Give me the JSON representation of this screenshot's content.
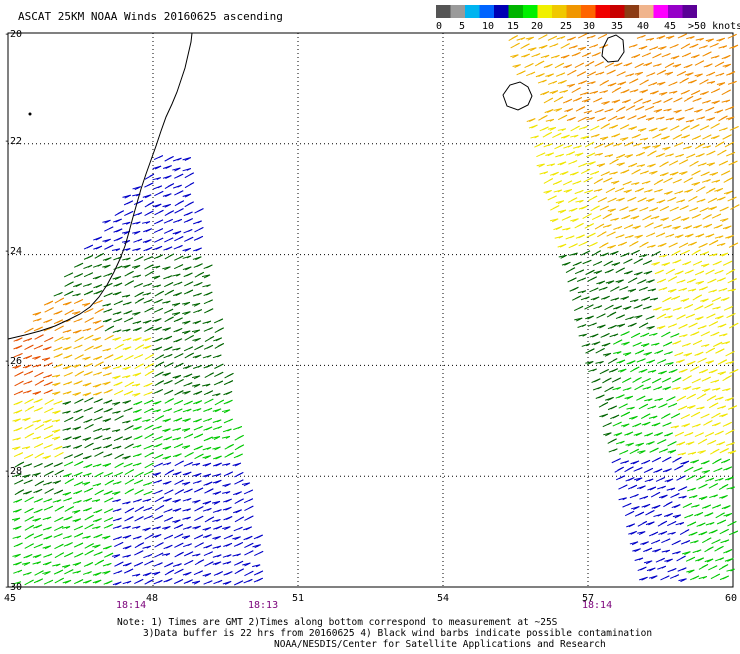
{
  "title": "ASCAT 25KM NOAA Winds 20160625 ascending",
  "legend": {
    "colors": [
      "#555555",
      "#9a9a9a",
      "#00b4f0",
      "#0064ff",
      "#0000b4",
      "#00b400",
      "#00f000",
      "#f0f000",
      "#f0c800",
      "#f09600",
      "#ff6400",
      "#f00000",
      "#c80000",
      "#8c3c14",
      "#f0b48c",
      "#ff00ff",
      "#9600c8",
      "#5a0096"
    ],
    "labels": [
      "0",
      "5",
      "10",
      "15",
      "20",
      "25",
      "30",
      "35",
      "40",
      "45",
      ">50 knots"
    ]
  },
  "axes": {
    "lon_labels": [
      "45",
      "48",
      "51",
      "54",
      "57",
      "60"
    ],
    "lat_labels": [
      "-20",
      "-22",
      "-24",
      "-26",
      "-28",
      "-30"
    ]
  },
  "times": [
    "18:14",
    "18:13",
    "18:14"
  ],
  "notes": [
    "Note: 1) Times are GMT 2)Times along bottom correspond to measurement at ~25S",
    "3)Data buffer is 22 hrs from 20160625 4) Black wind barbs indicate possible contamination",
    "NOAA/NESDIS/Center for Satellite Applications and Research"
  ],
  "swaths": [
    {
      "name": "west",
      "lon_range": [
        45.0,
        50.2
      ],
      "lat_range": [
        -30.0,
        -22.0
      ]
    },
    {
      "name": "east",
      "lon_range": [
        55.4,
        60.0
      ],
      "lat_range": [
        -30.0,
        -20.0
      ]
    }
  ],
  "wind_colors": {
    "blue": "#0000c8",
    "dark_green": "#006400",
    "green": "#00c800",
    "yellow": "#f0e600",
    "gold": "#f0b400",
    "orange": "#f08c00",
    "red_orange": "#e65000"
  }
}
